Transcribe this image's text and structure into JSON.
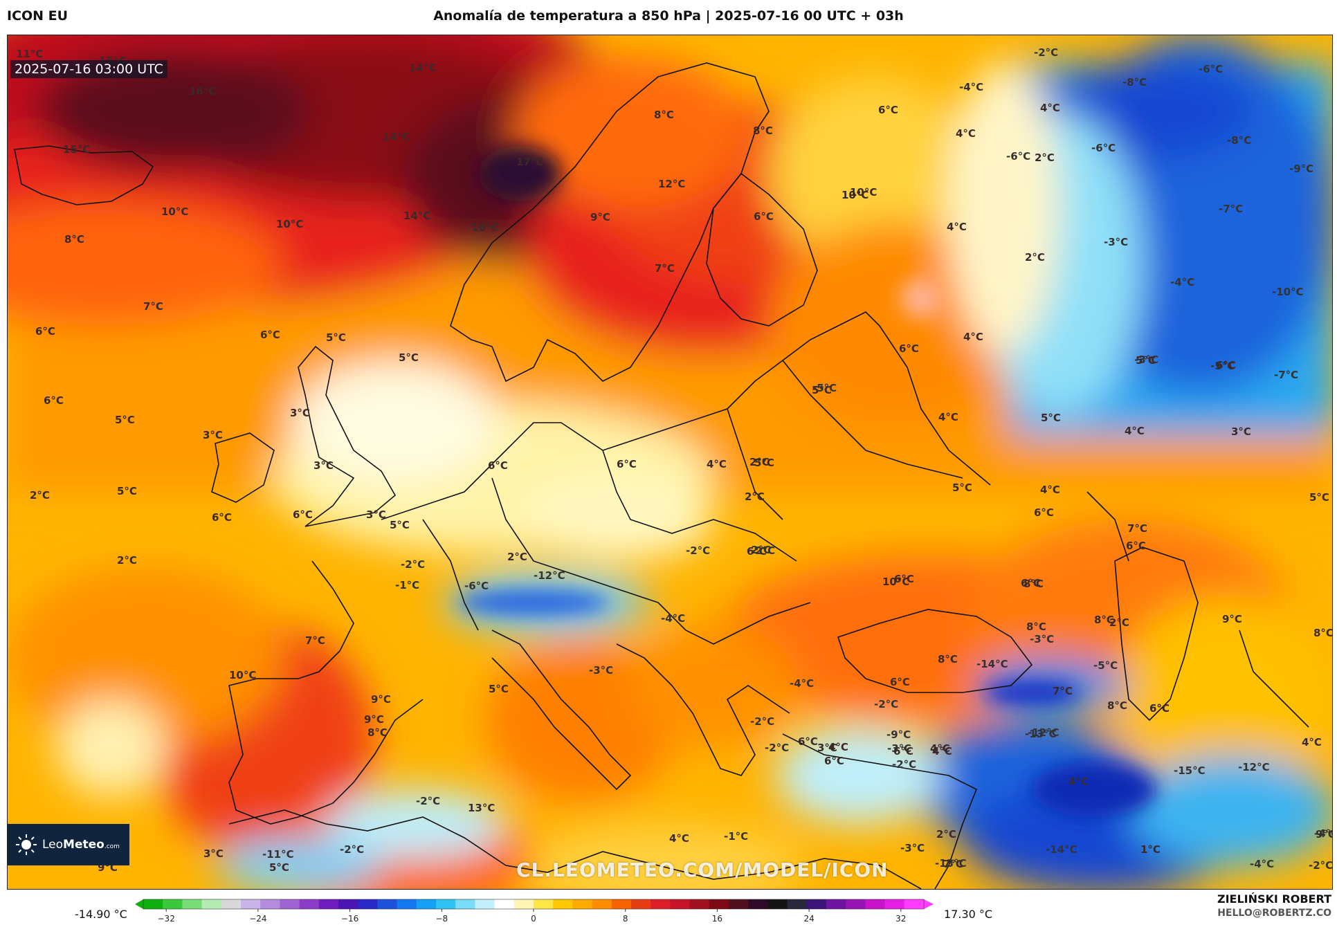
{
  "header": {
    "model": "ICON EU",
    "title": "Anomalía de temperatura a 850 hPa | 2025-07-16 00 UTC + 03h"
  },
  "map": {
    "valid_time": "2025-07-16 03:00 UTC",
    "watermark": "CL.LEOMETEO.COM/MODEL/ICON",
    "logo": {
      "name_bold": "Leo",
      "name_rest": "Meteo",
      "suffix": ".com"
    },
    "labels": [
      "11°C",
      "15°C",
      "14°C",
      "16°C",
      "14°C",
      "15°C",
      "17°C",
      "10°C",
      "10°C",
      "14°C",
      "16°C",
      "8°C",
      "7°C",
      "6°C",
      "6°C",
      "5°C",
      "5°C",
      "6°C",
      "5°C",
      "3°C",
      "3°C",
      "3°C",
      "2°C",
      "5°C",
      "6°C",
      "6°C",
      "3°C",
      "2°C",
      "5°C",
      "6°C",
      "6°C",
      "4°C",
      "-2°C",
      "2°C",
      "6°C",
      "-1°C",
      "-6°C",
      "-12°C",
      "7°C",
      "10°C",
      "9°C",
      "5°C",
      "-3°C",
      "-4°C",
      "6°C",
      "9°C",
      "-11°C",
      "-2°C",
      "3°C",
      "5°C",
      "-2°C",
      "9°C",
      "13°C",
      "9°C",
      "12°C",
      "7°C",
      "6°C",
      "10°C",
      "8°C",
      "8°C",
      "6°C",
      "4°C",
      "4°C",
      "2°C",
      "-2°C",
      "-4°C",
      "-6°C",
      "-6°C",
      "-8°C",
      "-6°C",
      "-8°C",
      "-9°C",
      "-7°C",
      "-3°C",
      "-4°C",
      "-10°C",
      "-3°C",
      "-5°C",
      "-7°C",
      "10°C",
      "4°C",
      "2°C",
      "6°C",
      "4°C",
      "4°C",
      "5°C",
      "5°C",
      "2°C",
      "2°C",
      "-2°C",
      "-4°C",
      "-2°C",
      "5°C",
      "-5°C",
      "4°C",
      "5°C",
      "4°C",
      "3°C",
      "5°C",
      "6°C",
      "7°C",
      "6°C",
      "-2°C",
      "6°C",
      "8°C",
      "10°C",
      "6°C",
      "8°C",
      "9°C",
      "8°C",
      "5°C",
      "6°C",
      "8°C",
      "2°C",
      "-3°C",
      "-5°C",
      "8°C",
      "6°C",
      "-14°C",
      "-13°C",
      "4°C",
      "-2°C",
      "7°C",
      "-2°C",
      "6°C",
      "4°C",
      "-3°C",
      "-9°C",
      "4°C",
      "-12°C",
      "8°C",
      "6°C",
      "-15°C",
      "-12°C",
      "4°C",
      "6°C",
      "4°C",
      "-1°C",
      "4°C",
      "2°C",
      "-4°C",
      "7°C",
      "-13°C",
      "-14°C",
      "1°C",
      "-4°C",
      "-2°C",
      "9°C",
      "8°C",
      "-2°C",
      "6°C",
      "3°C",
      "-2°C",
      "-3°C"
    ]
  },
  "colorbar": {
    "min_label": "-14.90 °C",
    "max_label": "17.30 °C",
    "ticks": [
      "−32",
      "−24",
      "−16",
      "−8",
      "0",
      "8",
      "16",
      "24",
      "32"
    ],
    "tick_values": [
      -32,
      -24,
      -16,
      -8,
      0,
      8,
      16,
      24,
      32
    ],
    "range": [
      -34,
      34
    ],
    "colors": [
      "#10b010",
      "#3cc83c",
      "#78dc78",
      "#b4ecb4",
      "#d8d8d8",
      "#c8b4e6",
      "#b48cdc",
      "#a064d2",
      "#8c3cc8",
      "#6e1ebe",
      "#4b14b4",
      "#2828c8",
      "#1e50dc",
      "#1478f0",
      "#14a0f5",
      "#32c3f5",
      "#78dcfa",
      "#c3f0fa",
      "#ffffff",
      "#fff5b4",
      "#ffe646",
      "#ffc800",
      "#ffaa00",
      "#ff8c00",
      "#f56400",
      "#e63c14",
      "#dc1e28",
      "#c81428",
      "#a0101e",
      "#7d0a14",
      "#501020",
      "#2d0a28",
      "#141414",
      "#28283c",
      "#3c1478",
      "#6e14a0",
      "#9614b4",
      "#c814c8",
      "#e61ee6",
      "#ff3cff"
    ]
  },
  "footer": {
    "author": "ZIELIŃSKI ROBERT",
    "email": "HELLO@ROBERTZ.CO"
  }
}
